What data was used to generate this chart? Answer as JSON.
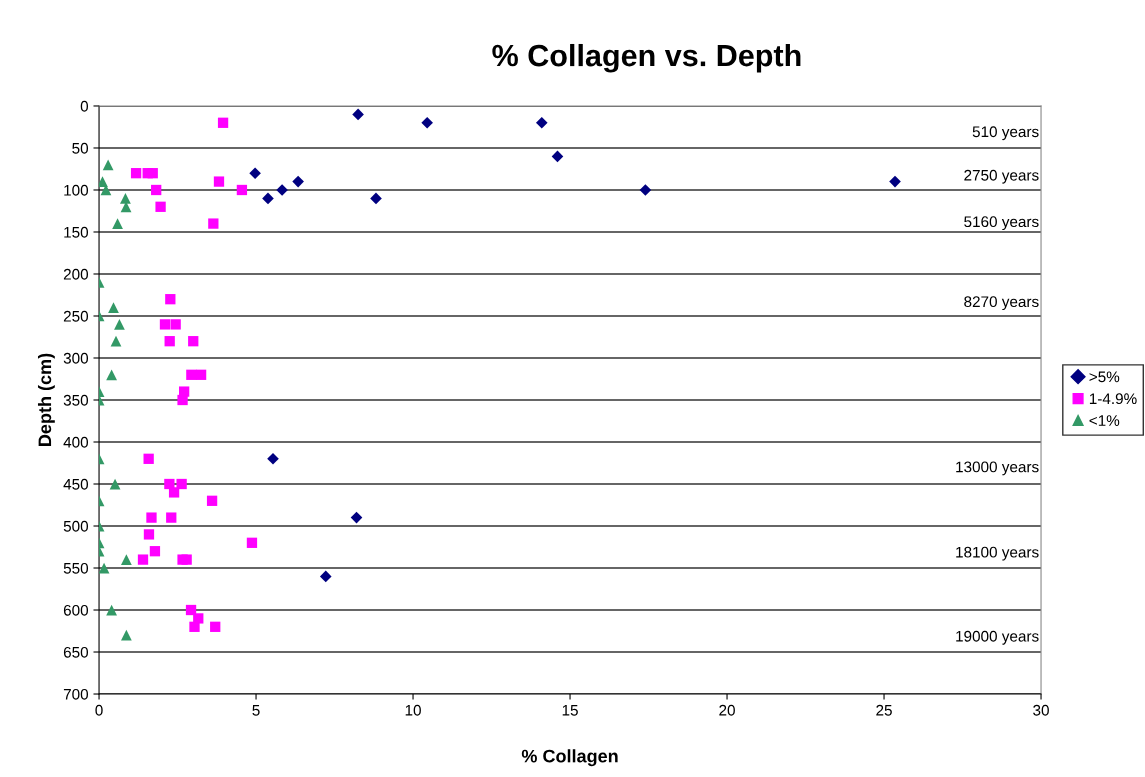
{
  "chart_data": {
    "type": "scatter",
    "title": "% Collagen vs. Depth",
    "xlabel": "% Collagen",
    "ylabel": "Depth (cm)",
    "xlim": [
      0,
      30
    ],
    "xticks": [
      0,
      5,
      10,
      15,
      20,
      25,
      30
    ],
    "ylim": [
      700,
      0
    ],
    "yticks": [
      0,
      50,
      100,
      150,
      200,
      250,
      300,
      350,
      400,
      450,
      500,
      550,
      600,
      650,
      700
    ],
    "grid": "y",
    "legend": "right",
    "series": [
      {
        "name": ">5%",
        "color": "#000080",
        "marker": "diamond",
        "x": [
          8.25,
          10.45,
          14.1,
          14.6,
          17.4,
          25.35,
          4.97,
          5.38,
          5.83,
          6.34,
          8.82,
          5.54,
          8.2,
          7.22
        ],
        "values": [
          10,
          20,
          20,
          60,
          100,
          90,
          80,
          110,
          100,
          90,
          110,
          420,
          490,
          560
        ]
      },
      {
        "name": "1-4.9%",
        "color": "#ff00ff",
        "marker": "square",
        "x": [
          3.95,
          1.18,
          1.55,
          1.71,
          1.82,
          3.82,
          4.55,
          1.96,
          3.64,
          2.27,
          2.1,
          2.44,
          2.25,
          3.0,
          2.94,
          3.25,
          2.71,
          2.66,
          1.58,
          2.24,
          2.63,
          2.39,
          3.6,
          1.67,
          2.3,
          1.59,
          4.87,
          1.78,
          1.4,
          2.66,
          2.79,
          2.93,
          3.16,
          3.04,
          3.7
        ],
        "values": [
          20,
          80,
          80,
          80,
          100,
          90,
          100,
          120,
          140,
          230,
          260,
          260,
          280,
          280,
          320,
          320,
          340,
          350,
          420,
          450,
          450,
          460,
          470,
          490,
          490,
          510,
          520,
          530,
          540,
          540,
          540,
          600,
          610,
          620,
          620
        ]
      },
      {
        "name": "<1%",
        "color": "#339966",
        "marker": "triangle",
        "x": [
          0.29,
          0.11,
          0.22,
          0.84,
          0.86,
          0.59,
          0,
          0.46,
          0,
          0.65,
          0.54,
          0.4,
          0,
          0,
          0,
          0.51,
          0,
          0,
          0,
          0,
          0.87,
          0.16,
          0.4,
          0.87
        ],
        "values": [
          70,
          90,
          100,
          110,
          120,
          140,
          210,
          240,
          250,
          260,
          280,
          320,
          340,
          350,
          420,
          450,
          470,
          500,
          520,
          530,
          540,
          550,
          600,
          630
        ]
      }
    ],
    "annotations": [
      "510 years",
      "2750 years",
      "5160 years",
      "8270 years",
      "13000 years",
      "18100 years",
      "19000 years"
    ]
  }
}
